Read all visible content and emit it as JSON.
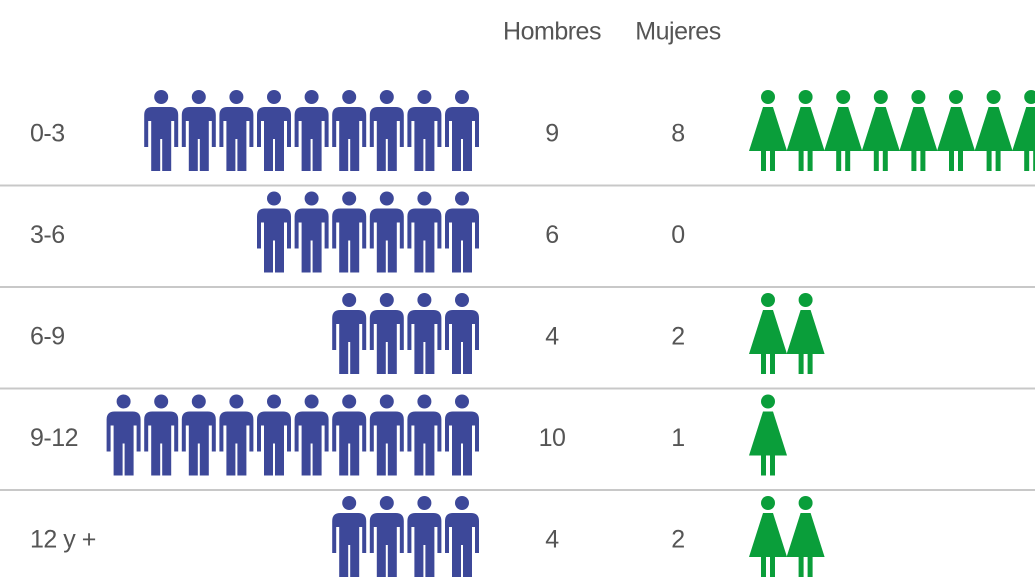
{
  "chart_data": {
    "type": "pictogram",
    "categories": [
      "0-3",
      "3-6",
      "6-9",
      "9-12",
      "12 y +"
    ],
    "series": [
      {
        "name": "Hombres",
        "color": "#3d4899",
        "values": [
          9,
          6,
          4,
          10,
          4
        ]
      },
      {
        "name": "Mujeres",
        "color": "#0a9e3a",
        "values": [
          8,
          0,
          2,
          1,
          2
        ]
      }
    ]
  }
}
